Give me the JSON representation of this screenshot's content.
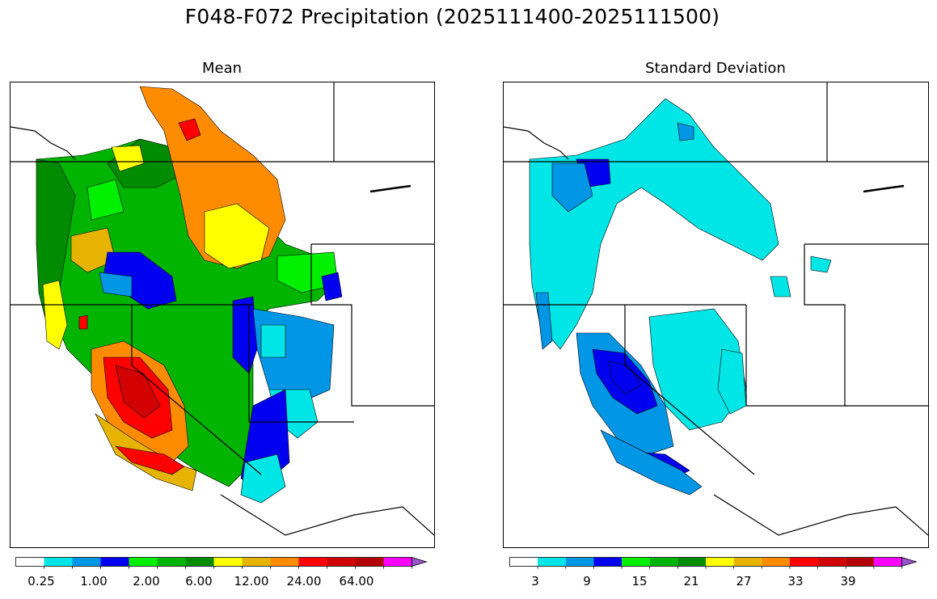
{
  "figure": {
    "title": "F048-F072 Precipitation (2025111400-2025111500)"
  },
  "panels": [
    {
      "title": "Mean",
      "colorbar": {
        "colors": [
          "#ffffff",
          "#00e5e5",
          "#0096e6",
          "#0000f0",
          "#00f000",
          "#00b400",
          "#008c00",
          "#ffff00",
          "#e6b400",
          "#ff8c00",
          "#ff0000",
          "#d20000",
          "#b40000",
          "#ff00ff",
          "#9955cc"
        ],
        "tick_labels": [
          "0.25",
          "1.00",
          "2.00",
          "6.00",
          "12.00",
          "24.00",
          "64.00"
        ],
        "extend": "max"
      }
    },
    {
      "title": "Standard Deviation",
      "colorbar": {
        "colors": [
          "#ffffff",
          "#00e5e5",
          "#0096e6",
          "#0000f0",
          "#00f000",
          "#00b400",
          "#008c00",
          "#ffff00",
          "#e6b400",
          "#ff8c00",
          "#ff0000",
          "#d20000",
          "#b40000",
          "#ff00ff",
          "#9955cc"
        ],
        "tick_labels": [
          "3",
          "9",
          "15",
          "21",
          "27",
          "33",
          "39"
        ],
        "extend": "max"
      }
    }
  ]
}
